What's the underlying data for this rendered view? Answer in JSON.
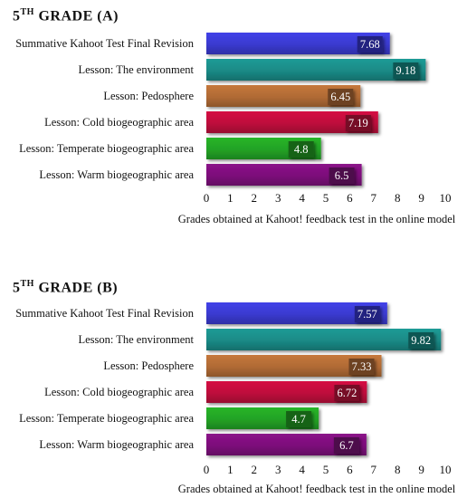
{
  "chart_data": [
    {
      "type": "bar",
      "orientation": "horizontal",
      "title": "5TH GRADE (A)",
      "title_parts": {
        "number": "5",
        "sup": "TH",
        "rest": " GRADE (A)"
      },
      "categories": [
        "Summative Kahoot Test Final Revision",
        "Lesson: The environment",
        "Lesson: Pedosphere",
        "Lesson: Cold biogeographic area",
        "Lesson: Temperate biogeographic area",
        "Lesson: Warm biogeographic area"
      ],
      "values": [
        7.68,
        9.18,
        6.45,
        7.19,
        4.8,
        6.5
      ],
      "value_labels": [
        "7.68",
        "9.18",
        "6.45",
        "7.19",
        "4.8",
        "6.5"
      ],
      "colors": [
        "#3a3acf",
        "#1a8a86",
        "#b06a35",
        "#be0c3c",
        "#23a225",
        "#7c107a"
      ],
      "xlim": [
        0,
        10
      ],
      "xticks": [
        0,
        1,
        2,
        3,
        4,
        5,
        6,
        7,
        8,
        9,
        10
      ],
      "xlabel": "Grades obtained at Kahoot! feedback test in the online model",
      "grid": false
    },
    {
      "type": "bar",
      "orientation": "horizontal",
      "title": "5TH GRADE (B)",
      "title_parts": {
        "number": "5",
        "sup": "TH",
        "rest": " GRADE (B)"
      },
      "categories": [
        "Summative Kahoot Test Final Revision",
        "Lesson: The environment",
        "Lesson: Pedosphere",
        "Lesson: Cold biogeographic area",
        "Lesson: Temperate biogeographic area",
        "Lesson: Warm biogeographic area"
      ],
      "values": [
        7.57,
        9.82,
        7.33,
        6.72,
        4.7,
        6.7
      ],
      "value_labels": [
        "7.57",
        "9.82",
        "7.33",
        "6.72",
        "4.7",
        "6.7"
      ],
      "colors": [
        "#3a3acf",
        "#1a8a86",
        "#b06a35",
        "#be0c3c",
        "#23a225",
        "#7c107a"
      ],
      "xlim": [
        0,
        10
      ],
      "xticks": [
        0,
        1,
        2,
        3,
        4,
        5,
        6,
        7,
        8,
        9,
        10
      ],
      "xlabel": "Grades obtained at Kahoot! feedback test in the online model",
      "grid": false
    }
  ]
}
